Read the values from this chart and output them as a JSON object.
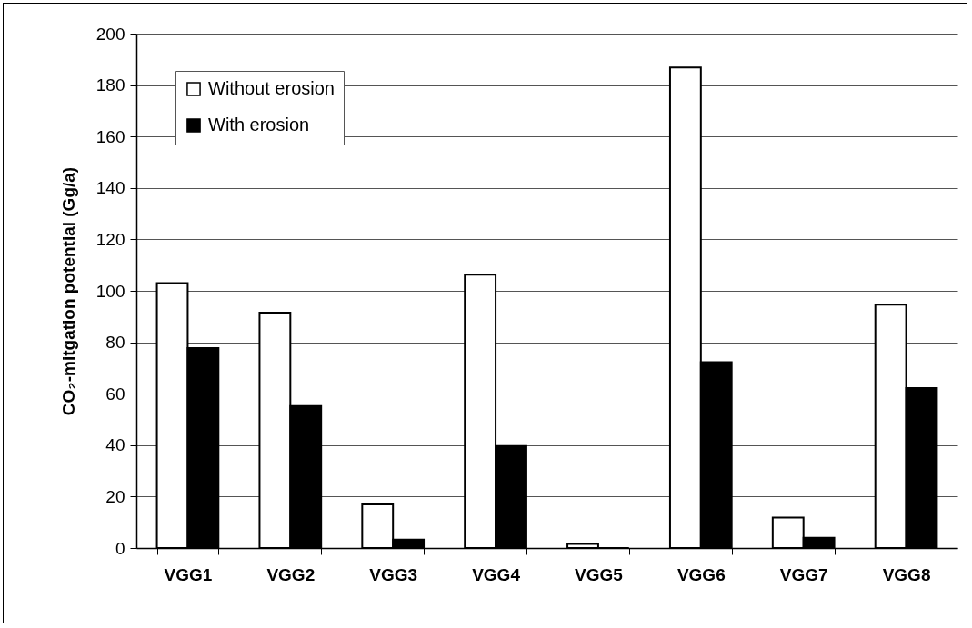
{
  "chart_data": {
    "type": "bar",
    "ylabel": "CO₂-mitgation potential (Gg/a)",
    "categories": [
      "VGG1",
      "VGG2",
      "VGG3",
      "VGG4",
      "VGG5",
      "VGG6",
      "VGG7",
      "VGG8"
    ],
    "series": [
      {
        "name": "Without erosion",
        "color": "#ffffff",
        "values": [
          103,
          91.5,
          17,
          106.3,
          1.6,
          186.8,
          11.8,
          94.6
        ]
      },
      {
        "name": "With erosion",
        "color": "#000000",
        "values": [
          77.7,
          55.2,
          3.3,
          39.7,
          0,
          72.3,
          4,
          62.2
        ]
      }
    ],
    "ylim": [
      0,
      200
    ],
    "yticks": [
      0,
      20,
      40,
      60,
      80,
      100,
      120,
      140,
      160,
      180,
      200
    ],
    "grid": "y",
    "legend": "top left"
  }
}
